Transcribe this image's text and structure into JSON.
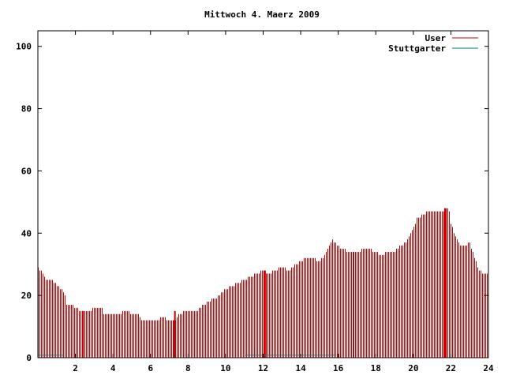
{
  "chart_data": {
    "type": "bar",
    "title": "Mittwoch 4. Maerz 2009",
    "xlabel": "",
    "ylabel": "",
    "xlim": [
      0,
      24
    ],
    "ylim": [
      0,
      105
    ],
    "x_ticks": [
      2,
      4,
      6,
      8,
      10,
      12,
      14,
      16,
      18,
      20,
      22,
      24
    ],
    "y_ticks": [
      0,
      20,
      40,
      60,
      80,
      100
    ],
    "grid": false,
    "legend_position": "top-right",
    "series": [
      {
        "name": "User",
        "color": "#cc0000",
        "anchors": [
          [
            0.0,
            29
          ],
          [
            0.15,
            28
          ],
          [
            0.3,
            26
          ],
          [
            0.5,
            25
          ],
          [
            0.7,
            25
          ],
          [
            0.9,
            24
          ],
          [
            1.0,
            23
          ],
          [
            1.2,
            22
          ],
          [
            1.4,
            21
          ],
          [
            1.5,
            17
          ],
          [
            1.8,
            17
          ],
          [
            2.0,
            16
          ],
          [
            2.3,
            15
          ],
          [
            2.6,
            15
          ],
          [
            2.8,
            15
          ],
          [
            3.0,
            16
          ],
          [
            3.4,
            16
          ],
          [
            3.5,
            14
          ],
          [
            4.0,
            14
          ],
          [
            4.4,
            14
          ],
          [
            4.6,
            15
          ],
          [
            4.8,
            15
          ],
          [
            5.0,
            14
          ],
          [
            5.3,
            14
          ],
          [
            5.5,
            12
          ],
          [
            6.0,
            12
          ],
          [
            6.4,
            12
          ],
          [
            6.6,
            13
          ],
          [
            7.0,
            12
          ],
          [
            7.3,
            12
          ],
          [
            7.5,
            14
          ],
          [
            8.0,
            15
          ],
          [
            8.5,
            15
          ],
          [
            9.0,
            18
          ],
          [
            9.5,
            19
          ],
          [
            9.8,
            21
          ],
          [
            10.0,
            22
          ],
          [
            10.3,
            23
          ],
          [
            10.6,
            24
          ],
          [
            11.0,
            25
          ],
          [
            11.3,
            26
          ],
          [
            11.6,
            27
          ],
          [
            12.0,
            28
          ],
          [
            12.3,
            27
          ],
          [
            12.6,
            28
          ],
          [
            13.0,
            29
          ],
          [
            13.4,
            28
          ],
          [
            13.7,
            30
          ],
          [
            14.0,
            31
          ],
          [
            14.3,
            32
          ],
          [
            14.6,
            32
          ],
          [
            15.0,
            31
          ],
          [
            15.3,
            33
          ],
          [
            15.5,
            36
          ],
          [
            15.7,
            38
          ],
          [
            15.9,
            36
          ],
          [
            16.2,
            35
          ],
          [
            16.5,
            34
          ],
          [
            17.0,
            34
          ],
          [
            17.5,
            35
          ],
          [
            18.0,
            34
          ],
          [
            18.3,
            33
          ],
          [
            18.6,
            34
          ],
          [
            19.0,
            34
          ],
          [
            19.3,
            36
          ],
          [
            19.6,
            37
          ],
          [
            20.0,
            42
          ],
          [
            20.2,
            45
          ],
          [
            20.5,
            46
          ],
          [
            20.8,
            47
          ],
          [
            21.2,
            47
          ],
          [
            21.5,
            47
          ],
          [
            21.7,
            48
          ],
          [
            21.9,
            48
          ],
          [
            22.0,
            43
          ],
          [
            22.2,
            40
          ],
          [
            22.5,
            36
          ],
          [
            22.8,
            36
          ],
          [
            23.0,
            37
          ],
          [
            23.2,
            33
          ],
          [
            23.5,
            28
          ],
          [
            23.8,
            27
          ],
          [
            24.0,
            27
          ]
        ],
        "thick_bars": [
          [
            2.4,
            15
          ],
          [
            7.3,
            15
          ],
          [
            12.1,
            28
          ],
          [
            21.7,
            48
          ]
        ]
      },
      {
        "name": "Stuttgarter",
        "color": "#008080",
        "segments": [
          [
            0.0,
            1.4,
            0.8
          ],
          [
            11.0,
            15.9,
            0.8
          ]
        ]
      }
    ]
  }
}
